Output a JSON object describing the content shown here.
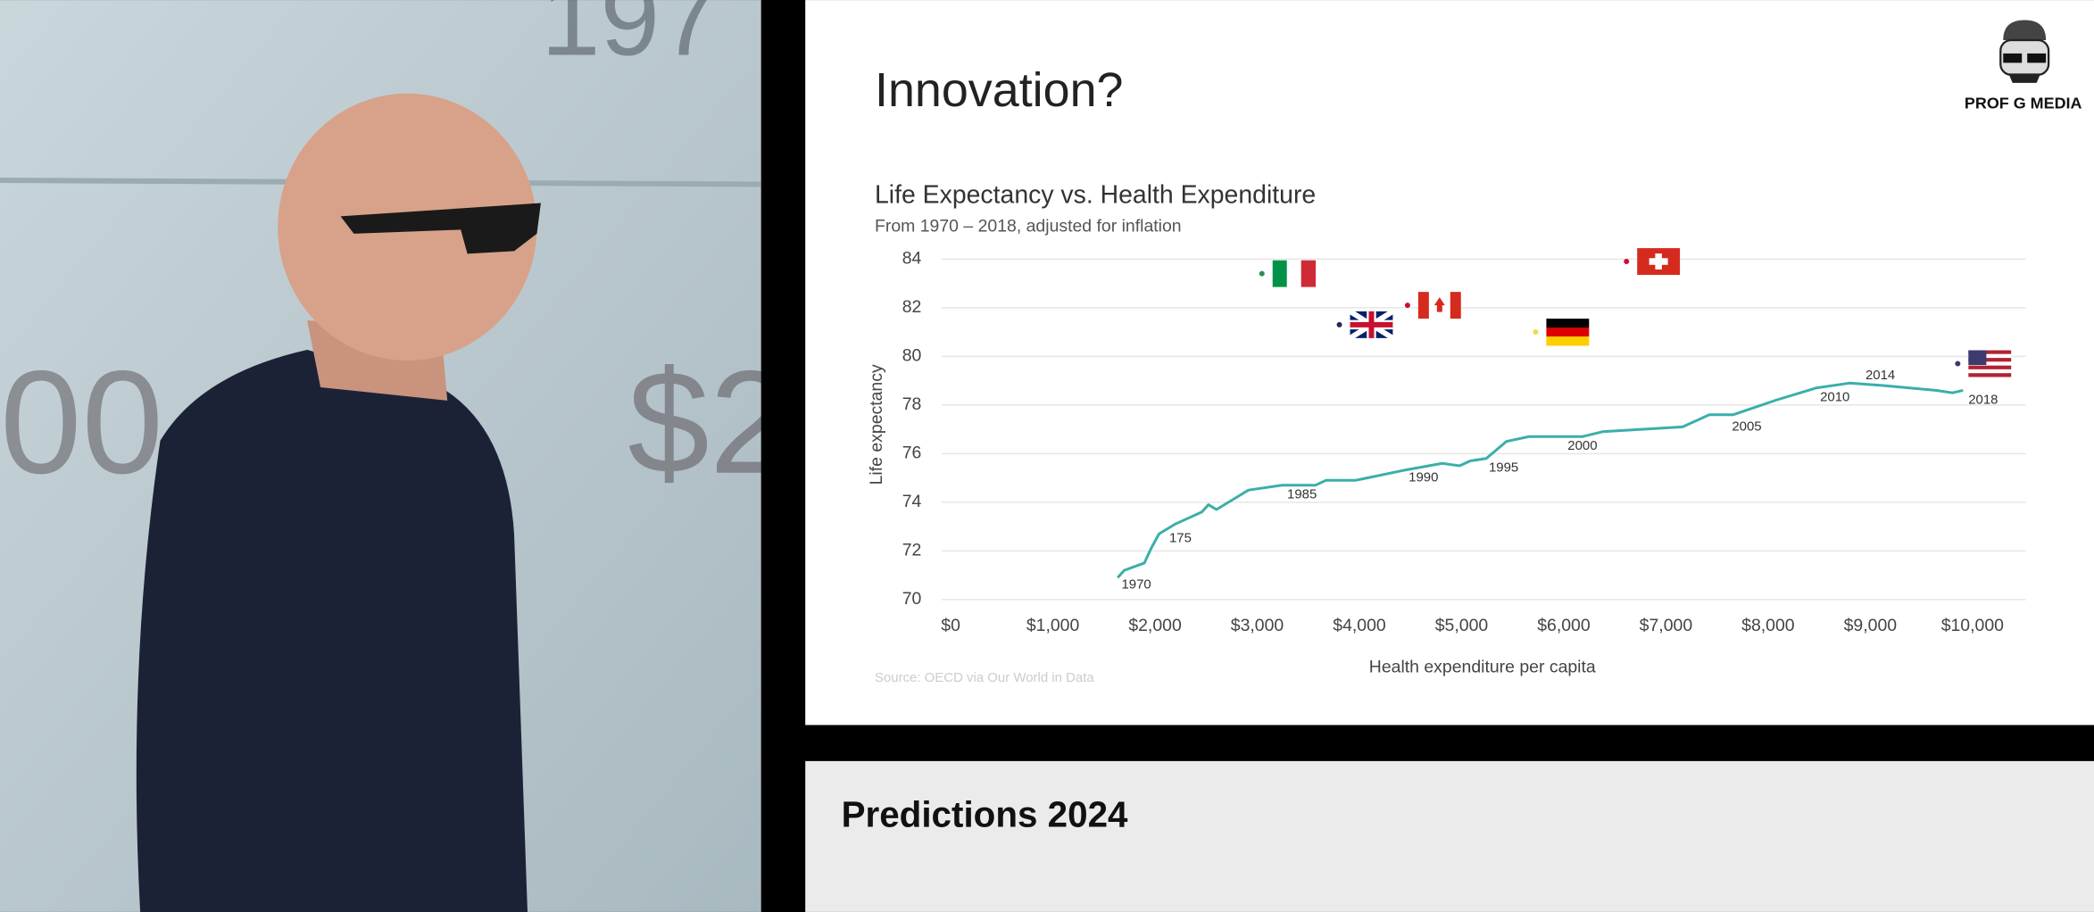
{
  "backdrop_texts": [
    "197",
    "00",
    "$2"
  ],
  "slide_title": "Innovation?",
  "brand": "PROF G MEDIA",
  "banner": "Predictions 2024",
  "chart_data": {
    "type": "line",
    "title": "Life Expectancy vs. Health Expenditure",
    "subtitle": "From 1970 – 2018, adjusted for inflation",
    "x_label": "Health expenditure per capita",
    "y_label": "Life expectancy",
    "source": "Source: OECD via Our World in Data",
    "xlim": [
      -90,
      10523
    ],
    "ylim": [
      70,
      84
    ],
    "yticks": [
      70,
      72,
      74,
      76,
      78,
      80,
      82,
      84
    ],
    "xticks": [
      {
        "value": 0,
        "label": "$0"
      },
      {
        "value": 1000,
        "label": "$1,000"
      },
      {
        "value": 2000,
        "label": "$2,000"
      },
      {
        "value": 3000,
        "label": "$3,000"
      },
      {
        "value": 4000,
        "label": "$4,000"
      },
      {
        "value": 5000,
        "label": "$5,000"
      },
      {
        "value": 6000,
        "label": "$6,000"
      },
      {
        "value": 7000,
        "label": "$7,000"
      },
      {
        "value": 8000,
        "label": "$8,000"
      },
      {
        "value": 9000,
        "label": "$9,000"
      },
      {
        "value": 10000,
        "label": "$10,000"
      }
    ],
    "grid": true,
    "series": [
      {
        "color": "#3aafa9",
        "x": [
          1634,
          1699,
          1895,
          1961,
          2039,
          2196,
          2353,
          2458,
          2523,
          2601,
          2915,
          3242,
          3569,
          3673,
          3961,
          4418,
          4810,
          4980,
          5085,
          5242,
          5438,
          5660,
          6183,
          6379,
          7163,
          7425,
          7660,
          8078,
          8471,
          8797,
          9124,
          9647,
          9804,
          9908
        ],
        "values": [
          70.9,
          71.2,
          71.5,
          72.1,
          72.7,
          73.1,
          73.4,
          73.6,
          73.9,
          73.7,
          74.5,
          74.7,
          74.7,
          74.9,
          74.9,
          75.3,
          75.6,
          75.5,
          75.7,
          75.8,
          76.5,
          76.7,
          76.7,
          76.9,
          77.1,
          77.6,
          77.6,
          78.2,
          78.7,
          78.9,
          78.8,
          78.6,
          78.5,
          78.6
        ]
      }
    ],
    "annotations": [
      {
        "text": "1970",
        "x": 1817,
        "y": 70.6
      },
      {
        "text": "175",
        "x": 2248,
        "y": 72.5
      },
      {
        "text": "1985",
        "x": 3438,
        "y": 74.3
      },
      {
        "text": "1990",
        "x": 4627,
        "y": 75.0
      },
      {
        "text": "1995",
        "x": 5412,
        "y": 75.4
      },
      {
        "text": "2000",
        "x": 6183,
        "y": 76.3
      },
      {
        "text": "2005",
        "x": 7791,
        "y": 77.1
      },
      {
        "text": "2010",
        "x": 8654,
        "y": 78.3
      },
      {
        "text": "2014",
        "x": 9098,
        "y": 79.2
      },
      {
        "text": "2018",
        "x": 10105,
        "y": 78.2
      }
    ],
    "countries": [
      {
        "x": 3046,
        "y": 83.4,
        "color": "#2e8b57",
        "flag": "v3",
        "flag_colors": [
          "#009246",
          "#ffffff",
          "#ce2b37"
        ]
      },
      {
        "x": 3804,
        "y": 81.3,
        "color": "#1f2a5a",
        "flag": "union",
        "flag_colors": [
          "#012169",
          "#ffffff",
          "#c8102e"
        ]
      },
      {
        "x": 4471,
        "y": 82.1,
        "color": "#c8102e",
        "flag": "maple",
        "flag_colors": [
          "#d52b1e",
          "#ffffff"
        ]
      },
      {
        "x": 5725,
        "y": 81.0,
        "color": "#e8e040",
        "flag": "h3",
        "flag_colors": [
          "#000000",
          "#dd0000",
          "#ffce00"
        ]
      },
      {
        "x": 6614,
        "y": 83.9,
        "color": "#c8102e",
        "flag": "cross",
        "flag_colors": [
          "#d52b1e",
          "#ffffff"
        ]
      },
      {
        "x": 9856,
        "y": 79.7,
        "color": "#3c3b6e",
        "flag": "stripes",
        "flag_colors": [
          "#b22234",
          "#ffffff",
          "#3c3b6e"
        ]
      }
    ]
  }
}
